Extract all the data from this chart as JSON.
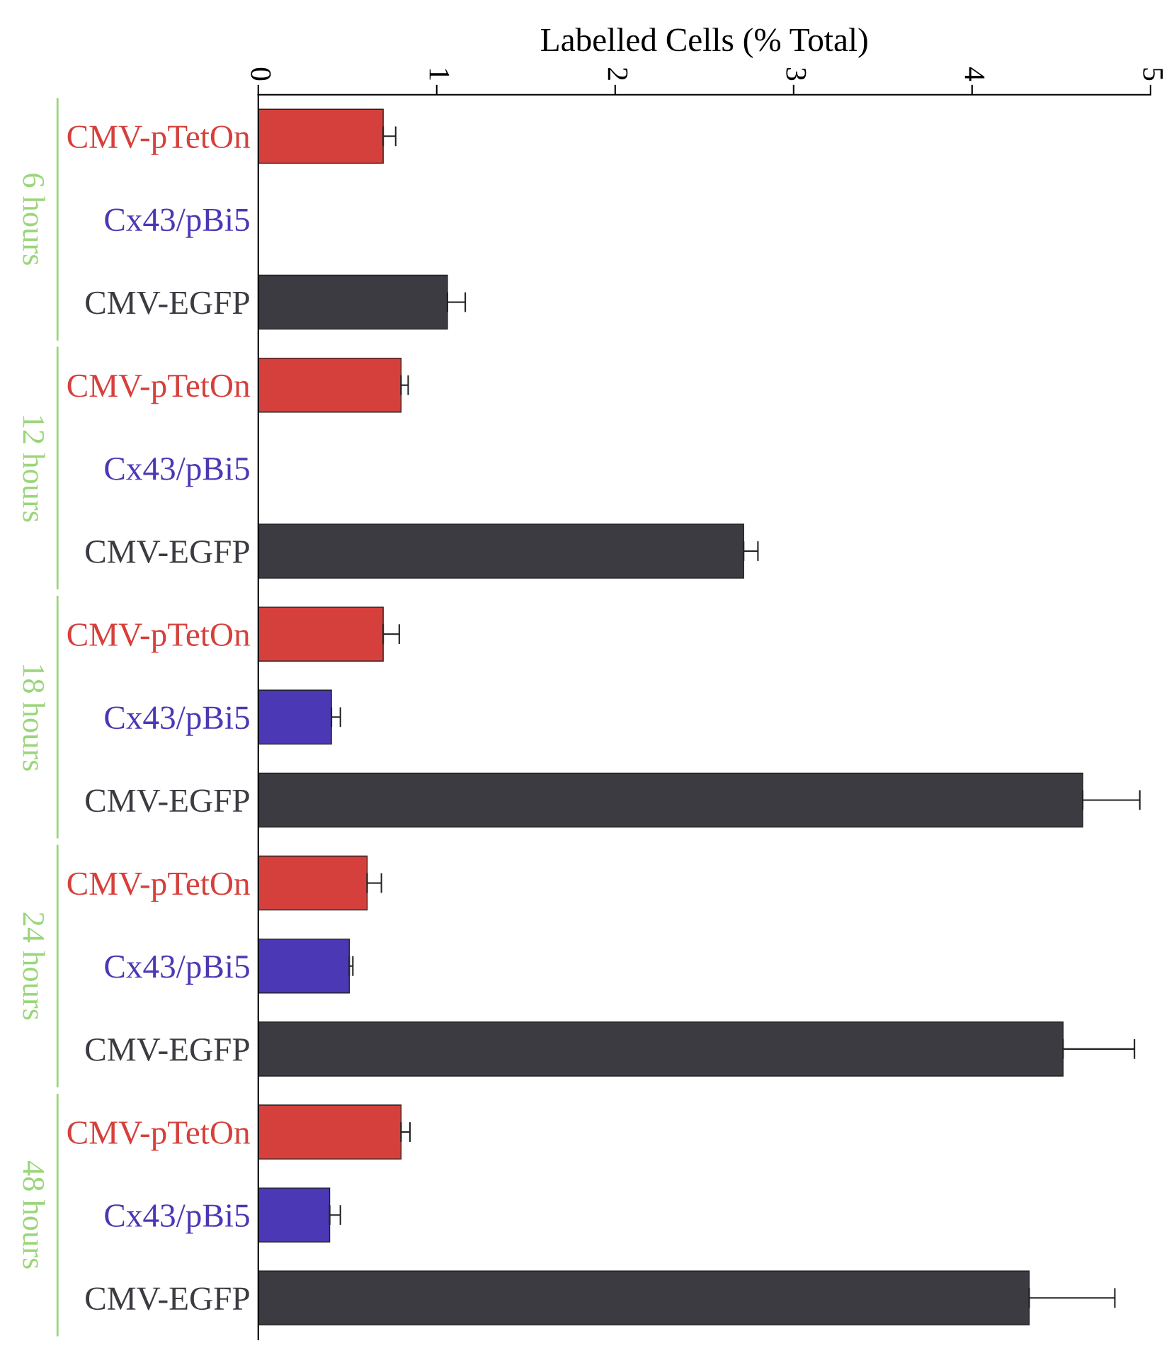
{
  "chart_data": {
    "type": "bar",
    "orientation": "horizontal",
    "xlabel": "Labelled Cells (% Total)",
    "categories": [
      "CMV-pTetOn",
      "Cx43/pBi5",
      "CMV-EGFP",
      "CMV-pTetOn",
      "Cx43/pBi5",
      "CMV-EGFP",
      "CMV-pTetOn",
      "Cx43/pBi5",
      "CMV-EGFP",
      "CMV-pTetOn",
      "Cx43/pBi5",
      "CMV-EGFP",
      "CMV-pTetOn",
      "Cx43/pBi5",
      "CMV-EGFP"
    ],
    "values": [
      0.7,
      null,
      1.06,
      0.8,
      null,
      2.72,
      0.7,
      0.41,
      4.62,
      0.61,
      0.51,
      4.51,
      0.8,
      0.4,
      4.32
    ],
    "errors": [
      0.07,
      null,
      0.1,
      0.04,
      null,
      0.08,
      0.09,
      0.05,
      0.32,
      0.08,
      0.02,
      0.4,
      0.05,
      0.06,
      0.48
    ],
    "colors": [
      "#d6403c",
      "#4b38b5",
      "#3c3b42",
      "#d6403c",
      "#4b38b5",
      "#3c3b42",
      "#d6403c",
      "#4b38b5",
      "#3c3b42",
      "#d6403c",
      "#4b38b5",
      "#3c3b42",
      "#d6403c",
      "#4b38b5",
      "#3c3b42"
    ],
    "xlim": [
      0,
      5
    ],
    "xticks": [
      0,
      1,
      2,
      3,
      4,
      5
    ],
    "grid": false,
    "legend": false,
    "annotations": [
      "6 hours",
      "12 hours",
      "18 hours",
      "24 hours",
      "48 hours"
    ]
  }
}
